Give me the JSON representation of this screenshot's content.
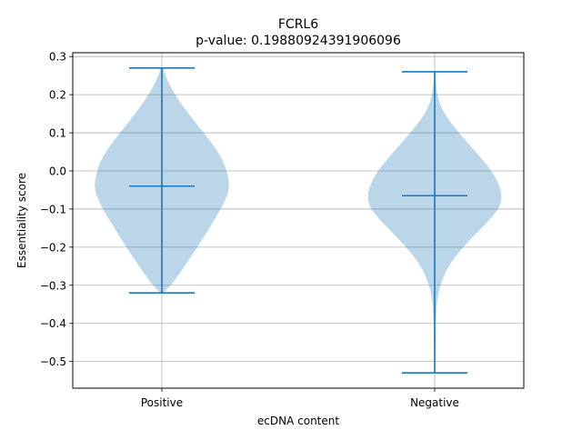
{
  "chart_data": {
    "type": "violin",
    "title": "FCRL6",
    "subtitle": "p-value: 0.19880924391906096",
    "xlabel": "ecDNA content",
    "ylabel": "Essentiality score",
    "categories": [
      "Positive",
      "Negative"
    ],
    "ylim": [
      -0.57,
      0.31
    ],
    "yticks": [
      0.3,
      0.2,
      0.1,
      0.0,
      -0.1,
      -0.2,
      -0.3,
      -0.4,
      -0.5
    ],
    "ytick_labels": [
      "0.3",
      "0.2",
      "0.1",
      "0.0",
      "−0.1",
      "−0.2",
      "−0.3",
      "−0.4",
      "−0.5"
    ],
    "grid": true,
    "colors": {
      "violin_fill": "#1f77b4",
      "lines": "#1f77b4",
      "grid": "#b0b0b0"
    },
    "series": [
      {
        "category": "Positive",
        "max": 0.27,
        "median": -0.04,
        "min": -0.32,
        "density_profile": [
          [
            0.27,
            0.02
          ],
          [
            0.25,
            0.05
          ],
          [
            0.22,
            0.13
          ],
          [
            0.18,
            0.27
          ],
          [
            0.14,
            0.44
          ],
          [
            0.1,
            0.62
          ],
          [
            0.06,
            0.8
          ],
          [
            0.02,
            0.93
          ],
          [
            -0.02,
            0.99
          ],
          [
            -0.04,
            1.0
          ],
          [
            -0.06,
            0.98
          ],
          [
            -0.1,
            0.88
          ],
          [
            -0.14,
            0.74
          ],
          [
            -0.18,
            0.6
          ],
          [
            -0.22,
            0.45
          ],
          [
            -0.26,
            0.3
          ],
          [
            -0.29,
            0.18
          ],
          [
            -0.31,
            0.08
          ],
          [
            -0.32,
            0.02
          ]
        ]
      },
      {
        "category": "Negative",
        "max": 0.26,
        "median": -0.065,
        "min": -0.53,
        "density_profile": [
          [
            0.26,
            0.01
          ],
          [
            0.22,
            0.02
          ],
          [
            0.18,
            0.06
          ],
          [
            0.14,
            0.18
          ],
          [
            0.1,
            0.36
          ],
          [
            0.06,
            0.56
          ],
          [
            0.02,
            0.76
          ],
          [
            -0.02,
            0.92
          ],
          [
            -0.06,
            1.0
          ],
          [
            -0.09,
            0.98
          ],
          [
            -0.12,
            0.86
          ],
          [
            -0.16,
            0.64
          ],
          [
            -0.2,
            0.42
          ],
          [
            -0.24,
            0.24
          ],
          [
            -0.28,
            0.12
          ],
          [
            -0.32,
            0.05
          ],
          [
            -0.36,
            0.025
          ],
          [
            -0.42,
            0.015
          ],
          [
            -0.48,
            0.01
          ],
          [
            -0.53,
            0.005
          ]
        ]
      }
    ]
  }
}
